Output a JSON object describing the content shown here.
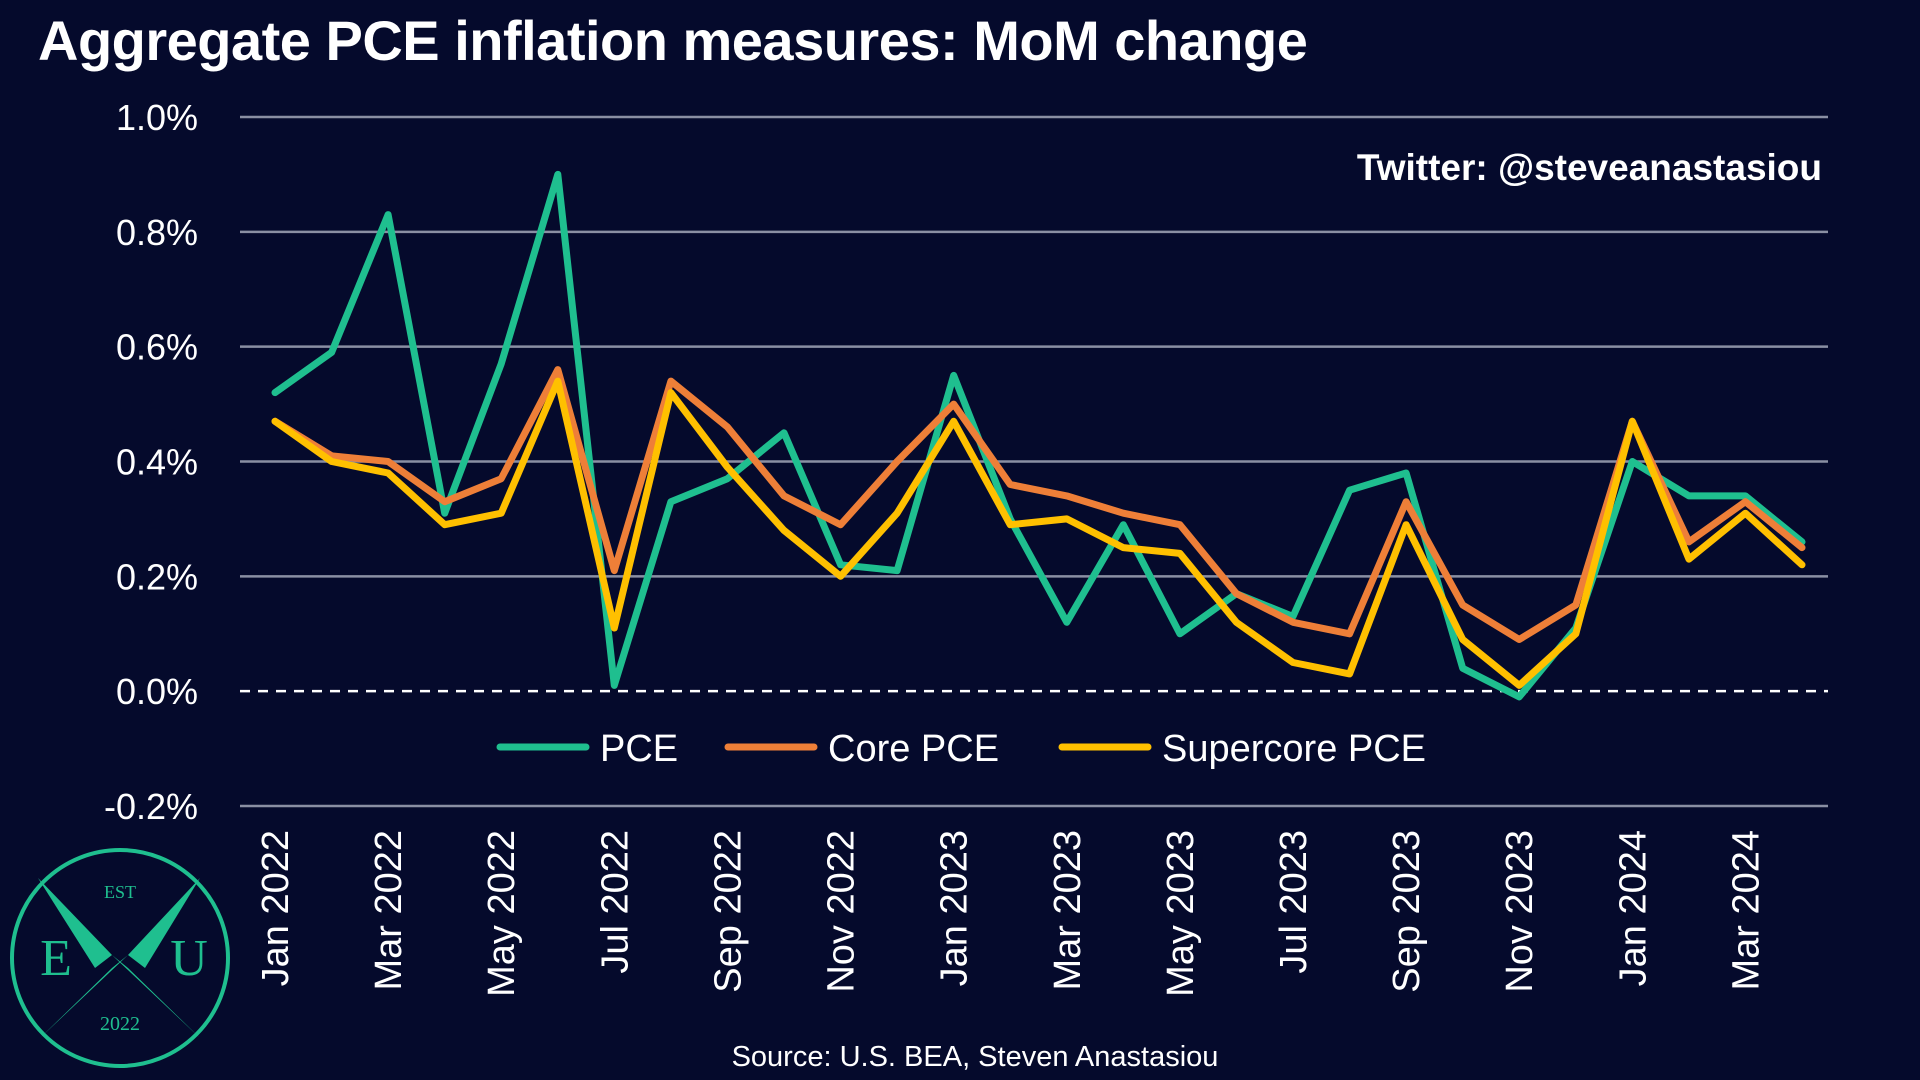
{
  "title": "Aggregate PCE inflation measures: MoM change",
  "watermark": "Twitter: @steveanastasiou",
  "source": "Source: U.S. BEA, Steven Anastasiou",
  "logo": {
    "top": "EST",
    "left": "E",
    "right": "U",
    "bottom": "2022",
    "color": "#1fbf8f"
  },
  "chart_data": {
    "type": "line",
    "x": [
      "Jan 2022",
      "Feb 2022",
      "Mar 2022",
      "Apr 2022",
      "May 2022",
      "Jun 2022",
      "Jul 2022",
      "Aug 2022",
      "Sep 2022",
      "Oct 2022",
      "Nov 2022",
      "Dec 2022",
      "Jan 2023",
      "Feb 2023",
      "Mar 2023",
      "Apr 2023",
      "May 2023",
      "Jun 2023",
      "Jul 2023",
      "Aug 2023",
      "Sep 2023",
      "Oct 2023",
      "Nov 2023",
      "Dec 2023",
      "Jan 2024",
      "Feb 2024",
      "Mar 2024",
      "Apr 2024"
    ],
    "x_tick_labels": [
      "Jan 2022",
      "Mar 2022",
      "May 2022",
      "Jul 2022",
      "Sep 2022",
      "Nov 2022",
      "Jan 2023",
      "Mar 2023",
      "May 2023",
      "Jul 2023",
      "Sep 2023",
      "Nov 2023",
      "Jan 2024",
      "Mar 2024"
    ],
    "y_tick_labels": [
      "1.0%",
      "0.8%",
      "0.6%",
      "0.4%",
      "0.2%",
      "0.0%",
      "-0.2%"
    ],
    "ylim": [
      -0.2,
      1.0
    ],
    "y_ticks": [
      1.0,
      0.8,
      0.6,
      0.4,
      0.2,
      0.0,
      -0.2
    ],
    "grid": true,
    "zero_line": "dashed",
    "legend_position": "bottom-center",
    "series": [
      {
        "name": "PCE",
        "color": "#1fbf8f",
        "values": [
          0.52,
          0.59,
          0.83,
          0.31,
          0.57,
          0.9,
          0.01,
          0.33,
          0.37,
          0.45,
          0.22,
          0.21,
          0.55,
          0.3,
          0.12,
          0.29,
          0.1,
          0.17,
          0.13,
          0.35,
          0.38,
          0.04,
          -0.01,
          0.11,
          0.4,
          0.34,
          0.34,
          0.26
        ]
      },
      {
        "name": "Core PCE",
        "color": "#ee7f38",
        "values": [
          0.47,
          0.41,
          0.4,
          0.33,
          0.37,
          0.56,
          0.21,
          0.54,
          0.46,
          0.34,
          0.29,
          0.4,
          0.5,
          0.36,
          0.34,
          0.31,
          0.29,
          0.17,
          0.12,
          0.1,
          0.33,
          0.15,
          0.09,
          0.15,
          0.47,
          0.26,
          0.33,
          0.25
        ]
      },
      {
        "name": "Supercore PCE",
        "color": "#ffc000",
        "values": [
          0.47,
          0.4,
          0.38,
          0.29,
          0.31,
          0.54,
          0.11,
          0.52,
          0.39,
          0.28,
          0.2,
          0.31,
          0.47,
          0.29,
          0.3,
          0.25,
          0.24,
          0.12,
          0.05,
          0.03,
          0.29,
          0.09,
          0.01,
          0.1,
          0.47,
          0.23,
          0.31,
          0.22
        ]
      }
    ]
  }
}
